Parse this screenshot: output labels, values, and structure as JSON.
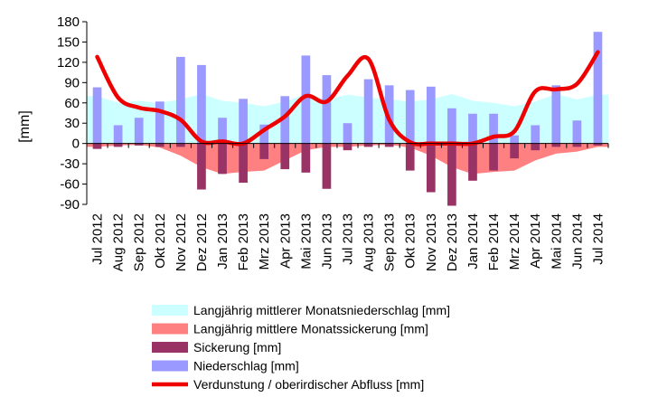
{
  "chart_data": {
    "type": "bar",
    "title": "",
    "xlabel": "",
    "ylabel": "[mm]",
    "ylim": [
      -90,
      180
    ],
    "yticks": [
      -90,
      -60,
      -30,
      0,
      30,
      60,
      90,
      120,
      150,
      180
    ],
    "grid": false,
    "legend_placement": "bottom",
    "categories": [
      "Jul 2012",
      "Aug 2012",
      "Sep 2012",
      "Okt 2012",
      "Nov 2012",
      "Dez 2012",
      "Jan 2013",
      "Feb 2013",
      "Mrz 2013",
      "Apr 2013",
      "Mai 2013",
      "Jun 2013",
      "Jul 2013",
      "Aug 2013",
      "Sep 2013",
      "Okt 2013",
      "Nov 2013",
      "Dez 2013",
      "Jan 2014",
      "Feb 2014",
      "Mrz 2014",
      "Apr 2014",
      "Mai 2014",
      "Jun 2014",
      "Jul 2014"
    ],
    "series": [
      {
        "name": "Langjährig mittlerer Monatsniederschlag [mm]",
        "kind": "area",
        "color": "#ccffff",
        "values": [
          70,
          60,
          63,
          60,
          65,
          73,
          63,
          60,
          55,
          62,
          73,
          65,
          72,
          68,
          65,
          62,
          65,
          73,
          63,
          60,
          55,
          62,
          73,
          65,
          72
        ]
      },
      {
        "name": "Langjährig mittlere Monatssickerung [mm]",
        "kind": "area",
        "color": "#ff8080",
        "values": [
          -5,
          -3,
          -2,
          -6,
          -18,
          -35,
          -45,
          -42,
          -40,
          -25,
          -10,
          -5,
          -5,
          -3,
          -2,
          -6,
          -18,
          -35,
          -45,
          -42,
          -40,
          -25,
          -15,
          -12,
          -5
        ]
      },
      {
        "name": "Sickerung [mm]",
        "kind": "bar",
        "color": "#993366",
        "values": [
          -8,
          -5,
          -3,
          -5,
          -5,
          -68,
          -45,
          -58,
          -23,
          -38,
          -43,
          -67,
          -10,
          -5,
          -5,
          -40,
          -72,
          -92,
          -55,
          -40,
          -22,
          -10,
          -5,
          -5,
          -3
        ]
      },
      {
        "name": "Niederschlag [mm]",
        "kind": "bar",
        "color": "#9999ff",
        "values": [
          83,
          27,
          38,
          62,
          128,
          116,
          38,
          66,
          28,
          70,
          130,
          101,
          30,
          95,
          86,
          79,
          84,
          52,
          44,
          44,
          12,
          27,
          86,
          34,
          165
        ]
      },
      {
        "name": "Verdunstung / oberirdischer Abfluss [mm]",
        "kind": "line",
        "color": "#ee0000",
        "values": [
          128,
          68,
          53,
          48,
          35,
          3,
          3,
          0,
          20,
          40,
          70,
          62,
          100,
          125,
          35,
          2,
          0,
          0,
          0,
          10,
          18,
          77,
          80,
          88,
          135
        ]
      }
    ]
  }
}
